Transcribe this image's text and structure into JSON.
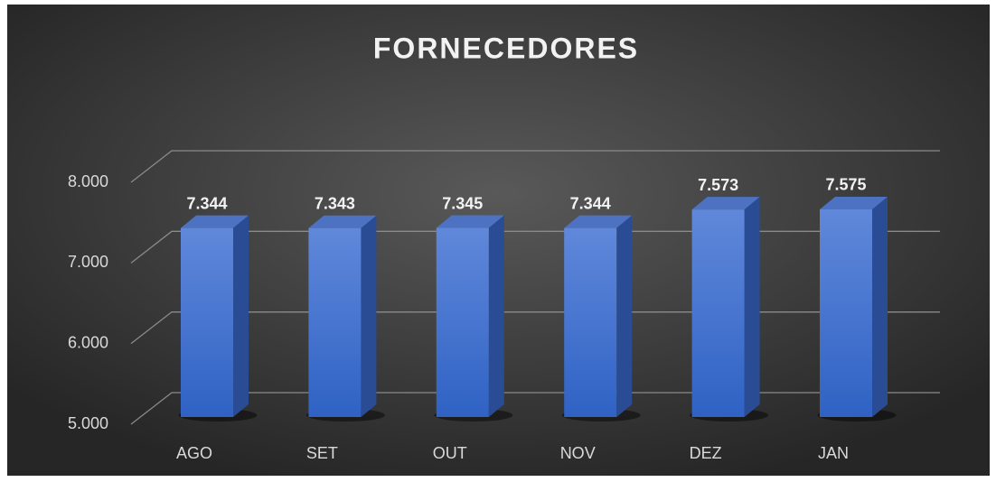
{
  "chart_data": {
    "type": "bar3d",
    "title": "FORNECEDORES",
    "categories": [
      "AGO",
      "SET",
      "OUT",
      "NOV",
      "DEZ",
      "JAN"
    ],
    "values": [
      7344,
      7343,
      7345,
      7344,
      7573,
      7575
    ],
    "value_labels": [
      "7.344",
      "7.343",
      "7.345",
      "7.344",
      "7.573",
      "7.575"
    ],
    "color": "#4a78d4",
    "ylim": [
      5000,
      8000
    ],
    "yticks": [
      {
        "value": 5000,
        "label": "5.000"
      },
      {
        "value": 6000,
        "label": "6.000"
      },
      {
        "value": 7000,
        "label": "7.000"
      },
      {
        "value": 8000,
        "label": "8.000"
      }
    ],
    "grid": true
  }
}
